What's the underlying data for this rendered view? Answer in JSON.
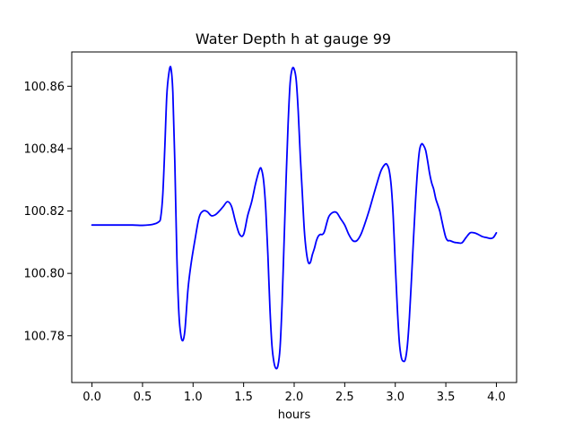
{
  "chart_data": {
    "type": "line",
    "title": "Water Depth h at gauge 99",
    "xlabel": "hours",
    "ylabel": "",
    "xlim": [
      -0.2,
      4.2
    ],
    "ylim": [
      100.765,
      100.871
    ],
    "xticks": [
      0.0,
      0.5,
      1.0,
      1.5,
      2.0,
      2.5,
      3.0,
      3.5,
      4.0
    ],
    "xtick_labels": [
      "0.0",
      "0.5",
      "1.0",
      "1.5",
      "2.0",
      "2.5",
      "3.0",
      "3.5",
      "4.0"
    ],
    "yticks": [
      100.78,
      100.8,
      100.82,
      100.84,
      100.86
    ],
    "ytick_labels": [
      "100.78",
      "100.80",
      "100.82",
      "100.84",
      "100.86"
    ],
    "grid": false,
    "series": [
      {
        "color": "#0000ff",
        "x": [
          0.0,
          0.2,
          0.4,
          0.5,
          0.6,
          0.66,
          0.68,
          0.7,
          0.72,
          0.74,
          0.76,
          0.78,
          0.8,
          0.82,
          0.84,
          0.86,
          0.88,
          0.9,
          0.92,
          0.95,
          0.98,
          1.02,
          1.06,
          1.1,
          1.14,
          1.18,
          1.22,
          1.26,
          1.3,
          1.34,
          1.38,
          1.42,
          1.46,
          1.5,
          1.54,
          1.58,
          1.62,
          1.66,
          1.68,
          1.7,
          1.72,
          1.74,
          1.76,
          1.78,
          1.8,
          1.82,
          1.84,
          1.86,
          1.88,
          1.9,
          1.92,
          1.94,
          1.96,
          1.98,
          2.0,
          2.02,
          2.04,
          2.06,
          2.08,
          2.1,
          2.12,
          2.14,
          2.16,
          2.18,
          2.2,
          2.22,
          2.24,
          2.26,
          2.28,
          2.3,
          2.34,
          2.38,
          2.42,
          2.46,
          2.5,
          2.54,
          2.58,
          2.62,
          2.66,
          2.7,
          2.74,
          2.78,
          2.82,
          2.86,
          2.9,
          2.92,
          2.94,
          2.96,
          2.98,
          3.0,
          3.02,
          3.04,
          3.06,
          3.08,
          3.1,
          3.12,
          3.14,
          3.16,
          3.18,
          3.2,
          3.22,
          3.24,
          3.26,
          3.28,
          3.3,
          3.32,
          3.34,
          3.36,
          3.38,
          3.4,
          3.42,
          3.44,
          3.46,
          3.48,
          3.5,
          3.52,
          3.54,
          3.58,
          3.62,
          3.66,
          3.7,
          3.74,
          3.78,
          3.82,
          3.86,
          3.9,
          3.94,
          3.97,
          4.0
        ],
        "y": [
          100.8155,
          100.8155,
          100.8155,
          100.8154,
          100.8157,
          100.8165,
          100.818,
          100.825,
          100.84,
          100.857,
          100.864,
          100.866,
          100.858,
          100.835,
          100.805,
          100.787,
          100.78,
          100.7785,
          100.782,
          100.795,
          100.803,
          100.811,
          100.818,
          100.82,
          100.8198,
          100.8185,
          100.8188,
          100.82,
          100.8215,
          100.823,
          100.8215,
          100.8165,
          100.8125,
          100.8125,
          100.8185,
          100.823,
          100.829,
          100.8335,
          100.833,
          100.829,
          100.82,
          100.806,
          100.789,
          100.777,
          100.7715,
          100.7695,
          100.7705,
          100.776,
          100.79,
          100.81,
          100.83,
          100.848,
          100.861,
          100.8655,
          100.8655,
          100.862,
          100.852,
          100.838,
          100.826,
          100.814,
          100.807,
          100.8035,
          100.8035,
          100.806,
          100.808,
          100.8105,
          100.812,
          100.8125,
          100.8125,
          100.8135,
          100.818,
          100.8195,
          100.8195,
          100.8175,
          100.8155,
          100.8125,
          100.8105,
          100.8105,
          100.8125,
          100.816,
          100.82,
          100.8245,
          100.829,
          100.833,
          100.835,
          100.8348,
          100.833,
          100.828,
          100.818,
          100.803,
          100.789,
          100.778,
          100.773,
          100.7718,
          100.7725,
          100.777,
          100.786,
          100.798,
          100.811,
          100.823,
          100.833,
          100.8395,
          100.8415,
          100.841,
          100.8395,
          100.836,
          100.832,
          100.829,
          100.827,
          100.824,
          100.822,
          100.82,
          100.817,
          100.814,
          100.8115,
          100.8105,
          100.8105,
          100.81,
          100.8098,
          100.8098,
          100.8115,
          100.813,
          100.813,
          100.8125,
          100.8118,
          100.8115,
          100.8112,
          100.8115,
          100.813
        ]
      }
    ]
  }
}
